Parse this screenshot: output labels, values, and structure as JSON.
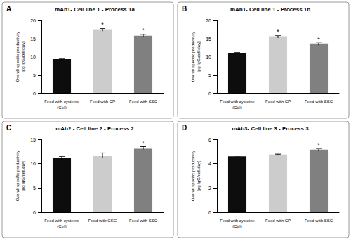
{
  "chart_data": [
    {
      "type": "bar",
      "label": "A",
      "title": "mAb1- Cell line 1 - Process 1a",
      "y_label": "Overall specific productivity\n[pg IgG/cell.day]",
      "categories": [
        "Feed with cysteine\n(Ctrl)",
        "Feed with CP",
        "Feed with SSC"
      ],
      "values": [
        9.4,
        17.4,
        15.8
      ],
      "errors": [
        0.05,
        0.35,
        0.4
      ],
      "annotations": [
        null,
        "*",
        "*"
      ],
      "colors": [
        "#0d0d0d",
        "#cccccc",
        "#808080"
      ],
      "ylim": [
        0,
        20
      ],
      "yticks": [
        0,
        5,
        10,
        15,
        20
      ],
      "grid": false
    },
    {
      "type": "bar",
      "label": "B",
      "title": "mAb1- Cell line 1 - Process 1b",
      "y_label": "Overall specific productivity\n[pg IgG/cell.day]",
      "categories": [
        "Feed with cysteine\n(Ctrl)",
        "Feed with CP",
        "Feed with SSC"
      ],
      "values": [
        11.1,
        15.5,
        13.5
      ],
      "errors": [
        0.1,
        0.3,
        0.3
      ],
      "annotations": [
        null,
        "*",
        "*"
      ],
      "colors": [
        "#0d0d0d",
        "#cccccc",
        "#808080"
      ],
      "ylim": [
        0,
        20
      ],
      "yticks": [
        0,
        5,
        10,
        15,
        20
      ],
      "grid": false
    },
    {
      "type": "bar",
      "label": "C",
      "title": "mAb2 - Cell line 2 - Process 2",
      "y_label": "Overall specific productivity\n[pg IgG/cell.day]",
      "categories": [
        "Feed with cysteine\n(Ctrl)",
        "Feed with CKG",
        "Feed with SSC"
      ],
      "values": [
        11.2,
        11.7,
        13.2
      ],
      "errors": [
        0.3,
        0.5,
        0.3
      ],
      "annotations": [
        null,
        null,
        "*"
      ],
      "colors": [
        "#0d0d0d",
        "#cccccc",
        "#808080"
      ],
      "ylim": [
        0,
        15
      ],
      "yticks": [
        0,
        5,
        10,
        15
      ],
      "grid": false
    },
    {
      "type": "bar",
      "label": "D",
      "title": "mAb3- Cell line 3 - Process 3",
      "y_label": "Overall specific productivity\n[pg IgG/cell.day]",
      "categories": [
        "Feed with cysteine\n(Ctrl)",
        "Feed with CP",
        "Feed with SSC"
      ],
      "values": [
        4.6,
        4.75,
        5.15
      ],
      "errors": [
        0.03,
        0.03,
        0.1
      ],
      "annotations": [
        null,
        null,
        "*"
      ],
      "colors": [
        "#0d0d0d",
        "#cccccc",
        "#808080"
      ],
      "ylim": [
        0,
        6
      ],
      "yticks": [
        0,
        2,
        4,
        6
      ],
      "grid": false
    }
  ]
}
